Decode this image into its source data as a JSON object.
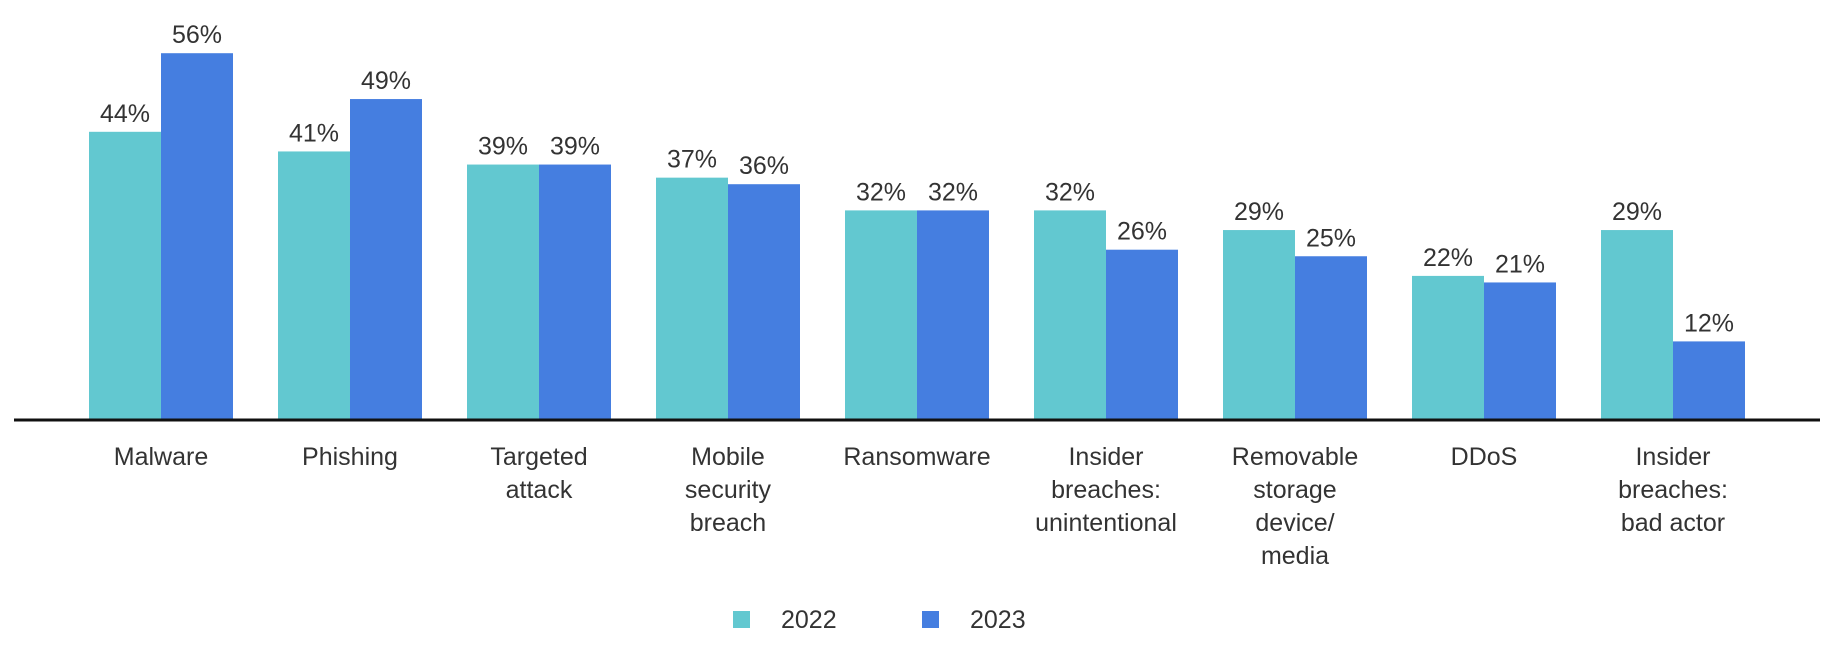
{
  "chart_data": {
    "type": "bar",
    "categories": [
      "Malware",
      "Phishing",
      "Targeted\nattack",
      "Mobile\nsecurity\nbreach",
      "Ransomware",
      "Insider\nbreaches:\nunintentional",
      "Removable\nstorage\ndevice/\nmedia",
      "DDoS",
      "Insider\nbreaches:\nbad actor"
    ],
    "series": [
      {
        "name": "2022",
        "color": "#62c8d0",
        "values": [
          44,
          41,
          39,
          37,
          32,
          32,
          29,
          22,
          29
        ],
        "value_labels": [
          "44%",
          "41%",
          "39%",
          "37%",
          "32%",
          "32%",
          "29%",
          "22%",
          "29%"
        ]
      },
      {
        "name": "2023",
        "color": "#457ee0",
        "values": [
          56,
          49,
          39,
          36,
          32,
          26,
          25,
          21,
          12
        ],
        "value_labels": [
          "56%",
          "49%",
          "39%",
          "36%",
          "32%",
          "26%",
          "25%",
          "21%",
          "12%"
        ]
      }
    ]
  }
}
